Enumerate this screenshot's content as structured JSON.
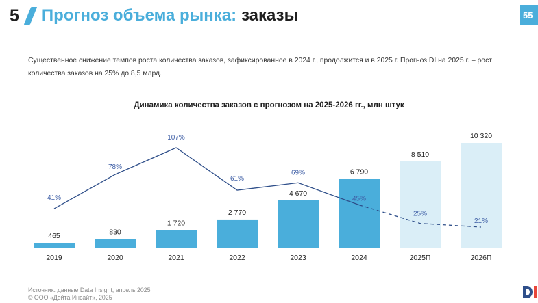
{
  "header": {
    "number": "5",
    "title_accent": "Прогноз объема рынка:",
    "title_rest": "заказы",
    "page": "55"
  },
  "description": "Существенное снижение темпов роста количества заказов, зафиксированное в 2024 г., продолжится и в 2025 г. Прогноз DI на 2025 г. – рост количества заказов на 25% до 8,5 млрд.",
  "footer": {
    "source": "Источник: данные Data Insight, апрель 2025",
    "copyright": "© ООО «Дейта Инсайт», 2025"
  },
  "colors": {
    "accent": "#4aaedb",
    "bar_actual": "#4aaedb",
    "bar_forecast": "#daeef7",
    "line": "#2f4f8a",
    "logo_red": "#e8463a"
  },
  "icons": [
    "logo-icon"
  ],
  "chart_data": {
    "type": "bar",
    "title": "Динамика количества заказов с прогнозом на 2025-2026 гг., млн штук",
    "categories": [
      "2019",
      "2020",
      "2021",
      "2022",
      "2023",
      "2024",
      "2025П",
      "2026П"
    ],
    "series": [
      {
        "values": [
          465,
          830,
          1720,
          2770,
          4670,
          6790,
          8510,
          10320
        ],
        "labels": [
          "465",
          "830",
          "1 720",
          "2 770",
          "4 670",
          "6 790",
          "8 510",
          "10 320"
        ],
        "forecast": [
          false,
          false,
          false,
          false,
          false,
          false,
          true,
          true
        ]
      }
    ],
    "growth": {
      "type": "line",
      "values": [
        41,
        78,
        107,
        61,
        69,
        45,
        25,
        21
      ],
      "labels": [
        "41%",
        "78%",
        "107%",
        "61%",
        "69%",
        "45%",
        "25%",
        "21%"
      ],
      "dashed_from_index": 5
    },
    "xlabel": "",
    "ylabel": "",
    "ylim": [
      0,
      10320
    ],
    "grid": false,
    "legend": "none"
  }
}
